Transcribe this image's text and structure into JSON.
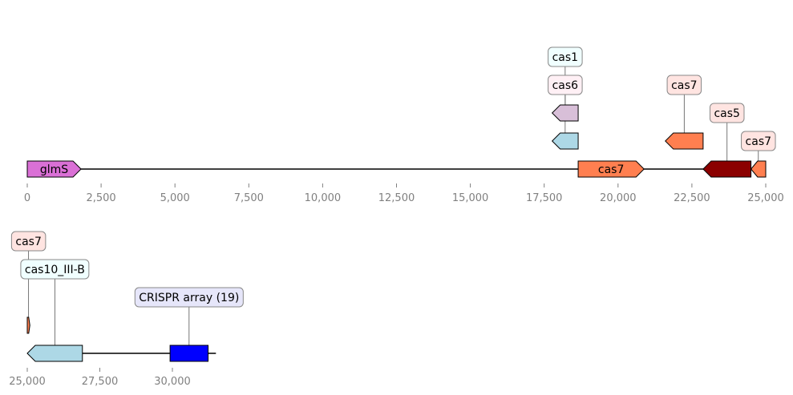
{
  "tracks": [
    {
      "axis": {
        "min": 0,
        "max": 25000
      },
      "ticks": [
        {
          "value": 0,
          "label": "0"
        },
        {
          "value": 2500,
          "label": "2,500"
        },
        {
          "value": 5000,
          "label": "5,000"
        },
        {
          "value": 7500,
          "label": "7,500"
        },
        {
          "value": 10000,
          "label": "10,000"
        },
        {
          "value": 12500,
          "label": "12,500"
        },
        {
          "value": 15000,
          "label": "15,000"
        },
        {
          "value": 17500,
          "label": "17,500"
        },
        {
          "value": 20000,
          "label": "20,000"
        },
        {
          "value": 22500,
          "label": "22,500"
        },
        {
          "value": 25000,
          "label": "25,000"
        }
      ],
      "features": [
        {
          "name": "glmS",
          "start": 0,
          "end": 1820,
          "strand": 1,
          "level": 0,
          "color": "#DA70D6",
          "label_inside": "glmS"
        },
        {
          "name": "cas1",
          "start": 17770,
          "end": 18650,
          "strand": -1,
          "level": 1,
          "color": "#ADD8E6",
          "tag": "cas1",
          "tag_color": "#F0FFFF",
          "tag_level": 4
        },
        {
          "name": "cas6",
          "start": 17770,
          "end": 18650,
          "strand": -1,
          "level": 2,
          "color": "#D8BFD8",
          "tag": "cas6",
          "tag_color": "#FFF0F5",
          "tag_level": 3
        },
        {
          "name": "cas7",
          "start": 18650,
          "end": 20880,
          "strand": 1,
          "level": 0,
          "color": "#FF7F50",
          "label_inside": "cas7"
        },
        {
          "name": "cas7",
          "start": 21600,
          "end": 22880,
          "strand": -1,
          "level": 1,
          "color": "#FF7F50",
          "tag": "cas7",
          "tag_color": "#FFE4E1",
          "tag_level": 3
        },
        {
          "name": "cas5",
          "start": 22880,
          "end": 24500,
          "strand": -1,
          "level": 0,
          "color": "#8B0000",
          "tag": "cas5",
          "tag_color": "#FFE4E1",
          "tag_level": 2
        },
        {
          "name": "cas7",
          "start": 24500,
          "end": 25000,
          "strand": -1,
          "level": 0,
          "color": "#FF7F50",
          "tag": "cas7",
          "tag_color": "#FFE4E1",
          "tag_level": 1
        }
      ]
    },
    {
      "axis": {
        "min": 25000,
        "max": 31500
      },
      "ticks": [
        {
          "value": 25000,
          "label": "25,000"
        },
        {
          "value": 27500,
          "label": "27,500"
        },
        {
          "value": 30000,
          "label": "30,000"
        }
      ],
      "features": [
        {
          "name": "cas7",
          "start": 25000,
          "end": 25090,
          "strand": 1,
          "level": 1,
          "color": "#FF7F50",
          "tag": "cas7",
          "tag_color": "#FFE4E1",
          "tag_level": 4
        },
        {
          "name": "cas10_III-B",
          "start": 25000,
          "end": 26900,
          "strand": -1,
          "level": 0,
          "color": "#ADD8E6",
          "tag": "cas10_III-B",
          "tag_color": "#F0FFFF",
          "tag_level": 3
        },
        {
          "name": "CRISPR array (19)",
          "start": 29920,
          "end": 31230,
          "strand": 0,
          "level": 0,
          "color": "#0000FF",
          "tag": "CRISPR array (19)",
          "tag_color": "#E6E6FA",
          "tag_level": 2
        }
      ]
    }
  ]
}
